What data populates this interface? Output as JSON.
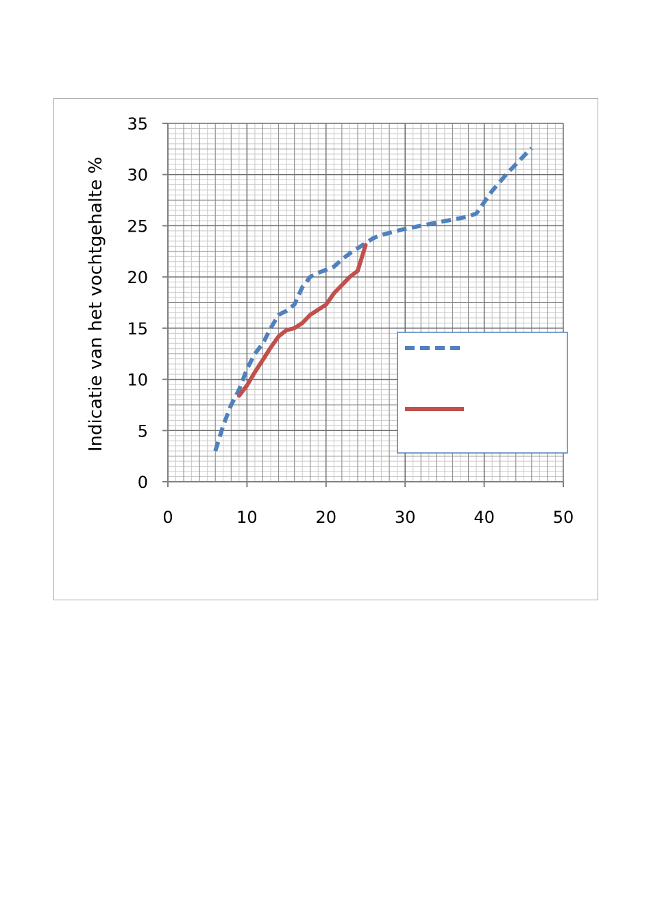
{
  "chart_data": {
    "type": "line",
    "title": "",
    "xlabel": "",
    "ylabel": "Indicatie van het vochtgehalte %",
    "xlim": [
      0,
      50
    ],
    "ylim": [
      0,
      35
    ],
    "x_ticks": [
      0,
      10,
      20,
      30,
      40,
      50
    ],
    "y_ticks": [
      0,
      5,
      10,
      15,
      20,
      25,
      30,
      35
    ],
    "x_tick_labels": [
      "0",
      "10",
      "20",
      "30",
      "40",
      "50"
    ],
    "y_tick_labels": [
      "0",
      "5",
      "10",
      "15",
      "20",
      "25",
      "30",
      "35"
    ],
    "grid": true,
    "legend_position": "right",
    "series": [
      {
        "color": "#4f81bd",
        "style": "dashed",
        "points": [
          [
            6,
            3
          ],
          [
            7,
            5.5
          ],
          [
            8,
            7.5
          ],
          [
            9,
            9
          ],
          [
            10,
            11
          ],
          [
            11,
            12.5
          ],
          [
            12,
            13.5
          ],
          [
            13,
            15
          ],
          [
            14,
            16.3
          ],
          [
            15,
            16.7
          ],
          [
            16,
            17.3
          ],
          [
            17,
            19
          ],
          [
            18,
            20
          ],
          [
            19,
            20.4
          ],
          [
            20,
            20.7
          ],
          [
            21,
            21
          ],
          [
            22,
            21.7
          ],
          [
            23,
            22.3
          ],
          [
            24,
            22.8
          ],
          [
            25,
            23.3
          ],
          [
            26,
            23.8
          ],
          [
            27,
            24.1
          ],
          [
            28,
            24.3
          ],
          [
            29,
            24.5
          ],
          [
            30,
            24.7
          ],
          [
            32,
            25
          ],
          [
            34,
            25.3
          ],
          [
            36,
            25.6
          ],
          [
            38,
            25.9
          ],
          [
            39,
            26.2
          ],
          [
            40,
            27.3
          ],
          [
            41,
            28.4
          ],
          [
            42,
            29.3
          ],
          [
            43,
            30.2
          ],
          [
            44,
            31
          ],
          [
            45,
            31.8
          ],
          [
            46,
            32.6
          ]
        ]
      },
      {
        "color": "#c0504d",
        "style": "solid",
        "points": [
          [
            9,
            8.4
          ],
          [
            10,
            9.4
          ],
          [
            11,
            10.7
          ],
          [
            12,
            11.9
          ],
          [
            13,
            13.1
          ],
          [
            14,
            14.2
          ],
          [
            15,
            14.8
          ],
          [
            16,
            15
          ],
          [
            17,
            15.5
          ],
          [
            18,
            16.3
          ],
          [
            19,
            16.8
          ],
          [
            20,
            17.3
          ],
          [
            21,
            18.4
          ],
          [
            22,
            19.2
          ],
          [
            23,
            20
          ],
          [
            24,
            20.6
          ],
          [
            25,
            23.1
          ]
        ]
      }
    ]
  }
}
